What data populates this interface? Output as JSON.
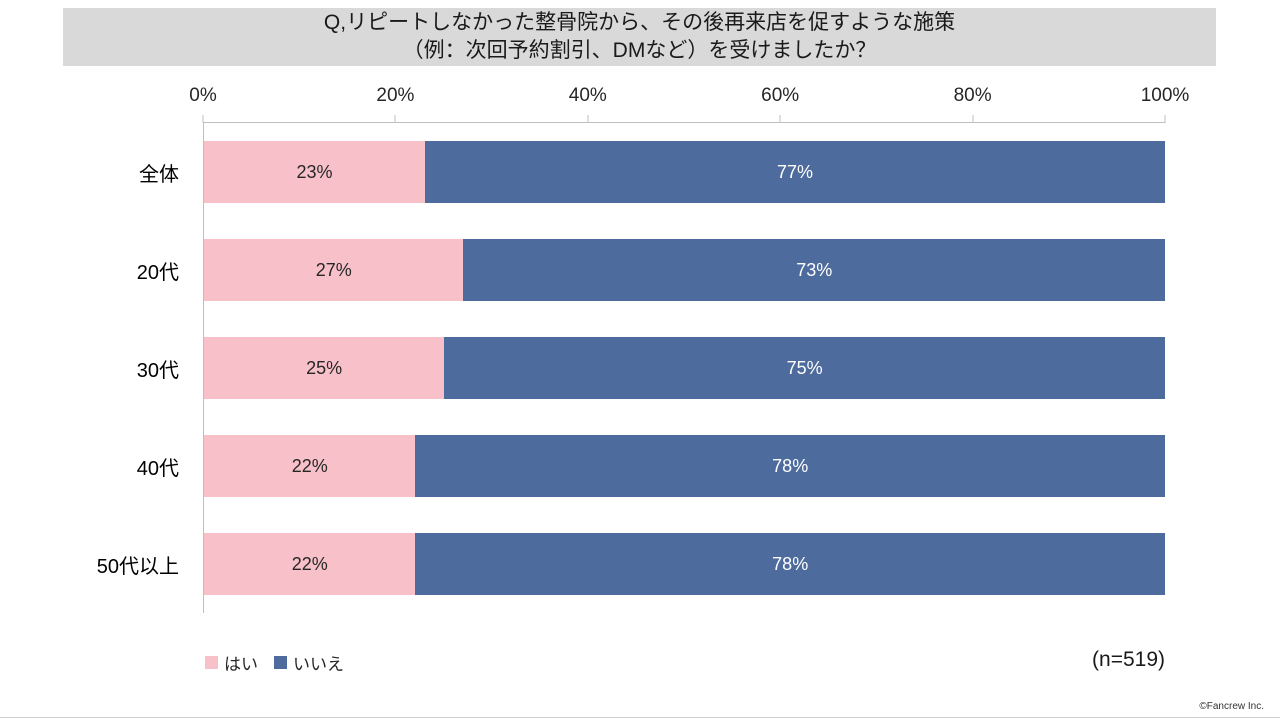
{
  "title": {
    "line1": "Q,リピートしなかった整骨院から、その後再来店を促すような施策",
    "line2": "（例：次回予約割引、DMなど）を受けましたか？"
  },
  "chart_data": {
    "type": "bar",
    "stacked": true,
    "orientation": "horizontal",
    "title": "Q,リピートしなかった整骨院から、その後再来店を促すような施策（例：次回予約割引、DMなど）を受けましたか？",
    "categories": [
      "全体",
      "20代",
      "30代",
      "40代",
      "50代以上"
    ],
    "series": [
      {
        "name": "はい",
        "color": "#f8c1c9",
        "text_color": "#262626",
        "values": [
          23,
          27,
          25,
          22,
          22
        ]
      },
      {
        "name": "いいえ",
        "color": "#4d6b9c",
        "text_color": "#ffffff",
        "values": [
          77,
          73,
          75,
          78,
          78
        ]
      }
    ],
    "x_ticks": [
      "0%",
      "20%",
      "40%",
      "60%",
      "80%",
      "100%"
    ],
    "xlim": [
      0,
      100
    ],
    "value_suffix": "%",
    "grid": false,
    "legend_position": "bottom-left"
  },
  "footer": {
    "sample_size": "(n=519)",
    "copyright": "©Fancrew Inc."
  },
  "colors": {
    "title_bg": "#d9d9d9",
    "axis": "#bfbfbf"
  }
}
